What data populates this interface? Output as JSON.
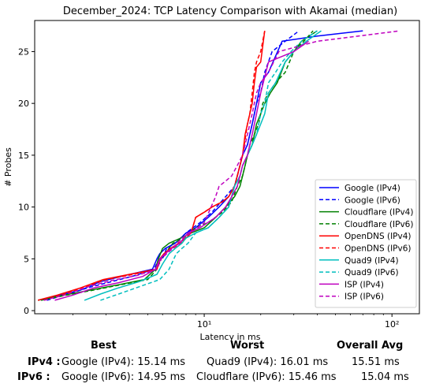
{
  "chart_data": {
    "type": "line",
    "title": "December_2024: TCP Latency Comparison with Akamai (median)",
    "xlabel": "Latency in ms",
    "ylabel": "# Probes",
    "xscale": "log",
    "xlim": [
      1.25,
      140
    ],
    "ylim": [
      -0.3,
      28
    ],
    "yticks": [
      0,
      5,
      10,
      15,
      20,
      25
    ],
    "xticks": [
      10,
      100
    ],
    "xtick_labels": [
      "10¹",
      "10²"
    ],
    "grid": false,
    "legend_position": "lower-right",
    "series": [
      {
        "name": "Google (IPv4)",
        "color": "#0000ff",
        "dash": "solid",
        "x": [
          1.35,
          1.7,
          2.2,
          2.8,
          3.8,
          5.3,
          5.6,
          5.8,
          6.2,
          7.0,
          7.5,
          8.0,
          9.0,
          10.5,
          12.0,
          13.5,
          14.5,
          15.0,
          15.5,
          16.0,
          17.0,
          17.5,
          18.0,
          18.5,
          19.0,
          19.5,
          20.0,
          22.0,
          26.0,
          40.0,
          70.0
        ],
        "y": [
          1,
          1.5,
          2,
          2.8,
          3.4,
          4,
          5,
          5.5,
          6,
          6.5,
          7,
          7.5,
          8,
          9,
          10,
          11,
          12,
          13,
          14,
          15,
          16,
          17,
          18,
          19,
          20,
          21,
          22,
          23,
          26,
          26.5,
          27
        ]
      },
      {
        "name": "Google (IPv6)",
        "color": "#0000ff",
        "dash": "dashed",
        "x": [
          1.45,
          1.8,
          2.4,
          3.2,
          4.3,
          5.4,
          5.6,
          6.0,
          6.3,
          7.0,
          8.0,
          9.5,
          11.0,
          13.0,
          14.5,
          15.0,
          15.5,
          16.0,
          17.0,
          17.5,
          18.0,
          18.5,
          19.0,
          20.0,
          21.0,
          23.0,
          27.0,
          32.0
        ],
        "y": [
          1,
          1.5,
          2.2,
          2.8,
          3.4,
          4,
          4.6,
          5,
          6,
          6.5,
          7.5,
          8.5,
          9.5,
          11,
          12,
          13,
          14,
          15,
          16,
          17,
          18,
          19,
          20,
          21,
          23,
          25,
          26,
          27
        ]
      },
      {
        "name": "Cloudflare (IPv4)",
        "color": "#008000",
        "dash": "solid",
        "x": [
          1.3,
          1.8,
          2.5,
          3.5,
          4.8,
          5.5,
          5.7,
          6.0,
          6.5,
          7.5,
          8.5,
          10.0,
          11.5,
          13.0,
          14.5,
          15.5,
          16.0,
          16.5,
          17.0,
          18.0,
          18.5,
          19.0,
          20.0,
          21.0,
          22.5,
          24.5,
          27.0,
          30.0,
          33.0,
          40.0
        ],
        "y": [
          1,
          1.5,
          2,
          2.5,
          3,
          4,
          5,
          6,
          6.5,
          7,
          7.5,
          8,
          9,
          10,
          11,
          12,
          13,
          14,
          15,
          16,
          17,
          18,
          19,
          20,
          21,
          22,
          24,
          25,
          26,
          27
        ]
      },
      {
        "name": "Cloudflare (IPv6)",
        "color": "#008000",
        "dash": "dashed",
        "x": [
          1.35,
          1.85,
          2.6,
          3.6,
          5.0,
          5.6,
          5.9,
          6.3,
          6.8,
          7.8,
          9.0,
          10.5,
          12.5,
          14.0,
          15.0,
          16.0,
          16.5,
          17.0,
          17.5,
          18.5,
          19.5,
          20.5,
          22.0,
          24.0,
          27.0,
          30.0,
          34.0,
          38.0
        ],
        "y": [
          1,
          1.5,
          2,
          2.5,
          3,
          4,
          5,
          5.7,
          6.5,
          7,
          8,
          8.5,
          9.5,
          10.5,
          12,
          13,
          14,
          15,
          16,
          17,
          18,
          20,
          21,
          22,
          23,
          25,
          26,
          27
        ]
      },
      {
        "name": "OpenDNS (IPv4)",
        "color": "#ff0000",
        "dash": "solid",
        "x": [
          1.3,
          1.65,
          2.2,
          2.9,
          4.0,
          5.6,
          5.8,
          6.1,
          6.6,
          7.3,
          8.0,
          8.5,
          9.0,
          10.0,
          11.0,
          12.5,
          13.5,
          14.5,
          15.0,
          15.5,
          16.0,
          16.5,
          17.0,
          17.5,
          18.0,
          18.5,
          19.0,
          20.0,
          21.0
        ],
        "y": [
          1,
          1.5,
          2.2,
          3,
          3.5,
          4,
          5,
          5.5,
          6,
          6.5,
          7,
          7.5,
          9,
          9.5,
          10,
          10.5,
          11,
          12,
          13,
          14,
          15,
          17,
          18,
          19,
          20,
          22,
          23.5,
          24,
          27
        ]
      },
      {
        "name": "OpenDNS (IPv6)",
        "color": "#ff0000",
        "dash": "dashed",
        "x": [
          1.4,
          1.75,
          2.3,
          3.0,
          4.2,
          5.6,
          5.9,
          6.3,
          6.8,
          7.5,
          8.0,
          8.5,
          9.0,
          10.0,
          11.0,
          12.5,
          13.5,
          14.5,
          15.0,
          15.5,
          16.0,
          16.5,
          17.0,
          17.5,
          18.0,
          18.5,
          19.0,
          20.0,
          21.0
        ],
        "y": [
          1,
          1.5,
          2.3,
          3,
          3.5,
          4,
          5,
          5.5,
          6,
          6.5,
          7,
          7.5,
          9,
          9.5,
          10,
          10.5,
          11,
          12,
          13,
          14,
          15,
          16.5,
          18,
          19,
          21,
          23,
          24,
          25,
          27
        ]
      },
      {
        "name": "Quad9 (IPv4)",
        "color": "#00bfbf",
        "dash": "solid",
        "x": [
          2.3,
          2.8,
          3.5,
          4.5,
          5.6,
          6.0,
          6.5,
          7.0,
          7.6,
          8.0,
          9.0,
          10.5,
          12.0,
          13.5,
          14.5,
          15.5,
          16.0,
          17.0,
          18.0,
          19.0,
          20.0,
          21.0,
          22.0,
          24.0,
          27.0,
          30.0,
          35.0,
          42.0
        ],
        "y": [
          1,
          1.6,
          2.2,
          2.8,
          3.5,
          4.5,
          5.5,
          6,
          6.5,
          7,
          7.5,
          8,
          9,
          10,
          12,
          13,
          14,
          15,
          16,
          17,
          18,
          19,
          21,
          22,
          24,
          25,
          26,
          27
        ]
      },
      {
        "name": "Quad9 (IPv6)",
        "color": "#00bfbf",
        "dash": "dashed",
        "x": [
          2.8,
          3.5,
          4.5,
          5.8,
          6.5,
          7.1,
          7.6,
          8.2,
          9.0,
          10.5,
          12.0,
          13.5,
          14.5,
          15.5,
          16.0,
          17.0,
          18.0,
          19.0,
          20.0,
          21.0,
          22.0,
          24.0,
          26.0,
          29.0,
          33.0,
          40.0
        ],
        "y": [
          1,
          1.6,
          2.3,
          3,
          4,
          5.5,
          6,
          6.5,
          7.5,
          8,
          9,
          10,
          12,
          13,
          14,
          15,
          16,
          17,
          19,
          20,
          22,
          23,
          24,
          25,
          26,
          27
        ]
      },
      {
        "name": "ISP (IPv4)",
        "color": "#bf00bf",
        "dash": "solid",
        "x": [
          1.6,
          2.0,
          2.6,
          3.5,
          4.7,
          5.5,
          5.8,
          6.2,
          6.7,
          7.4,
          8.2,
          9.5,
          11.5,
          13.0,
          14.0,
          15.0,
          15.5,
          16.0,
          17.0,
          17.5,
          18.0,
          18.5,
          19.0,
          20.0,
          22.0,
          30.0,
          36.0
        ],
        "y": [
          1,
          1.5,
          2.2,
          2.7,
          3.3,
          4,
          5,
          5.5,
          6,
          6.5,
          7.5,
          8,
          9,
          10,
          11,
          12,
          13,
          14,
          15,
          16,
          17,
          18,
          19,
          21,
          24,
          25,
          26
        ]
      },
      {
        "name": "ISP (IPv6)",
        "color": "#bf00bf",
        "dash": "dashed",
        "x": [
          1.4,
          1.8,
          2.4,
          3.2,
          4.4,
          5.6,
          5.9,
          6.3,
          6.8,
          7.6,
          8.5,
          10.0,
          11.5,
          12.0,
          13.0,
          14.0,
          15.0,
          16.0,
          16.5,
          17.0,
          18.0,
          19.0,
          20.0,
          22.0,
          25.0,
          40.0,
          110.0
        ],
        "y": [
          1,
          1.5,
          2.3,
          2.9,
          3.4,
          4,
          5,
          5.5,
          6,
          7,
          7.5,
          8.5,
          11,
          12,
          12.5,
          13,
          14,
          15,
          16,
          17,
          19,
          21,
          22,
          23,
          25,
          26,
          27
        ]
      }
    ]
  },
  "stats": {
    "headers": {
      "best": "Best",
      "worst": "Worst",
      "avg": "Overall Avg"
    },
    "rows": [
      {
        "label": "IPv4 :",
        "best": "Google (IPv4): 15.14 ms",
        "worst": "Quad9 (IPv4): 16.01 ms",
        "avg": "15.51 ms"
      },
      {
        "label": "IPv6 :",
        "best": "Google (IPv6): 14.95 ms",
        "worst": "Cloudflare (IPv6): 15.46 ms",
        "avg": "15.04 ms"
      }
    ]
  }
}
